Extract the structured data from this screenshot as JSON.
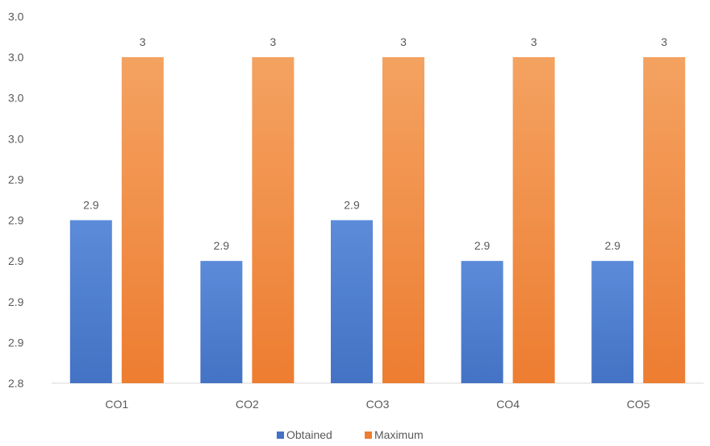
{
  "colors": {
    "obtained": "#4472C4",
    "obtained_light": "#5B8BD9",
    "maximum": "#ED7D31",
    "maximum_light": "#F4A261",
    "axis_text": "#595959",
    "axis_line": "#D9D9D9"
  },
  "chart_data": {
    "type": "bar",
    "title": "",
    "xlabel": "",
    "ylabel": "",
    "categories": [
      "CO1",
      "CO2",
      "CO3",
      "CO4",
      "CO5"
    ],
    "series": [
      {
        "name": "Obtained",
        "values": [
          2.92,
          2.9,
          2.92,
          2.9,
          2.9
        ],
        "labels": [
          "2.9",
          "2.9",
          "2.9",
          "2.9",
          "2.9"
        ]
      },
      {
        "name": "Maximum",
        "values": [
          3,
          3,
          3,
          3,
          3
        ],
        "labels": [
          "3",
          "3",
          "3",
          "3",
          "3"
        ]
      }
    ],
    "ylim": [
      2.84,
      3.0
    ],
    "yticks": [
      2.84,
      2.86,
      2.88,
      2.9,
      2.92,
      2.94,
      2.96,
      2.98,
      3.0,
      3.02
    ],
    "ytick_labels": [
      "2.8",
      "2.9",
      "2.9",
      "2.9",
      "2.9",
      "2.9",
      "3.0",
      "3.0",
      "3.0",
      "3.0"
    ],
    "grid": false,
    "legend_position": "bottom"
  }
}
